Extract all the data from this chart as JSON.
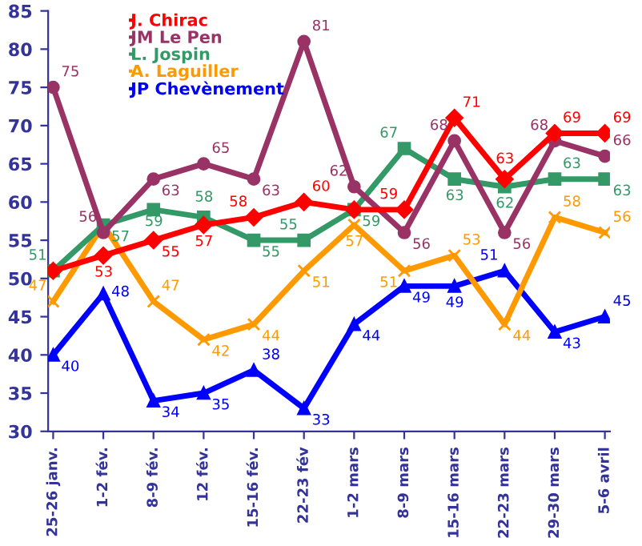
{
  "chart_data": {
    "type": "line",
    "categories": [
      "25-26 janv.",
      "1-2 fév.",
      "8-9 fév.",
      "12 fév.",
      "15-16 fév.",
      "22-23 fév",
      "1-2 mars",
      "8-9 mars",
      "15-16 mars",
      "22-23 mars",
      "29-30 mars",
      "5-6 avril"
    ],
    "series": [
      {
        "name": "J. Chirac",
        "color": "#ff0000",
        "marker": "diamond",
        "values": [
          51,
          53,
          55,
          57,
          58,
          60,
          59,
          59,
          71,
          63,
          69,
          69
        ],
        "value_labels": [
          null,
          "53",
          "55",
          "57",
          "58",
          "60",
          null,
          "59",
          "71",
          "63",
          "69",
          "69"
        ]
      },
      {
        "name": "JM Le Pen",
        "color": "#993366",
        "marker": "circle",
        "values": [
          75,
          56,
          63,
          65,
          63,
          81,
          62,
          56,
          68,
          56,
          68,
          66
        ],
        "value_labels": [
          "75",
          "56",
          "63",
          "65",
          "63",
          "81",
          "62",
          "56",
          "68",
          "56",
          "68",
          "66"
        ]
      },
      {
        "name": "L. Jospin",
        "color": "#339966",
        "marker": "square",
        "values": [
          51,
          57,
          59,
          58,
          55,
          55,
          59,
          67,
          63,
          62,
          63,
          63
        ],
        "value_labels": [
          "51",
          "57",
          "59",
          "58",
          "55",
          "55",
          "59",
          "67",
          "63",
          "62",
          "63",
          "63"
        ]
      },
      {
        "name": "A. Laguiller",
        "color": "#ff9900",
        "marker": "cross",
        "values": [
          47,
          57,
          47,
          42,
          44,
          51,
          57,
          51,
          53,
          44,
          58,
          56
        ],
        "value_labels": [
          "47",
          null,
          "47",
          "42",
          "44",
          "51",
          "57",
          "51",
          "53",
          "44",
          "58",
          "56"
        ]
      },
      {
        "name": "JP Chevènement",
        "color": "#0000ff",
        "marker": "triangle",
        "values": [
          40,
          48,
          34,
          35,
          38,
          33,
          44,
          49,
          49,
          51,
          43,
          45
        ],
        "value_labels": [
          "40",
          "48",
          "34",
          "35",
          "38",
          "33",
          "44",
          "49",
          "49",
          "51",
          "43",
          "45"
        ]
      }
    ],
    "ylim": [
      30,
      85
    ],
    "yticks": [
      30,
      35,
      40,
      45,
      50,
      55,
      60,
      65,
      70,
      75,
      80,
      85
    ],
    "grid": false,
    "legend": "top left",
    "line_style": "solid"
  }
}
